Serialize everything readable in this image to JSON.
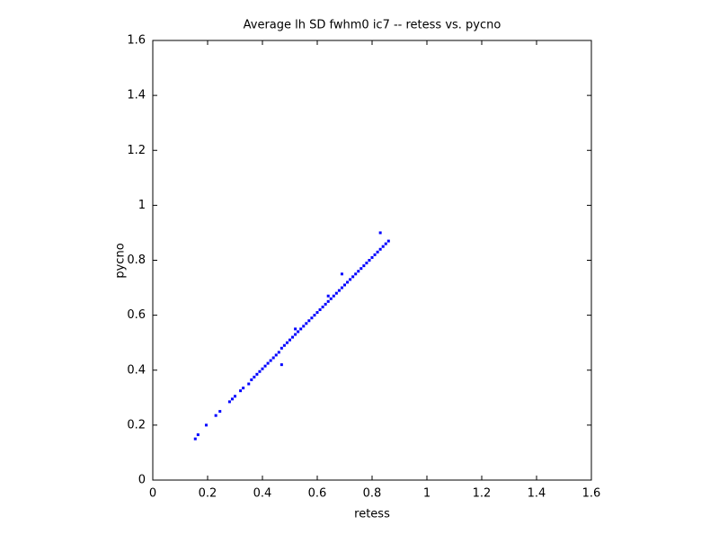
{
  "chart_data": {
    "type": "scatter",
    "title": "Average lh SD fwhm0 ic7 -- retess vs. pycno",
    "x_label": "retess",
    "y_label": "pycno",
    "x": [
      0.155,
      0.165,
      0.195,
      0.23,
      0.245,
      0.28,
      0.29,
      0.3,
      0.32,
      0.33,
      0.35,
      0.36,
      0.37,
      0.38,
      0.39,
      0.4,
      0.41,
      0.42,
      0.43,
      0.44,
      0.45,
      0.46,
      0.47,
      0.48,
      0.49,
      0.5,
      0.51,
      0.52,
      0.53,
      0.54,
      0.55,
      0.56,
      0.57,
      0.58,
      0.59,
      0.6,
      0.61,
      0.62,
      0.63,
      0.64,
      0.65,
      0.66,
      0.67,
      0.68,
      0.69,
      0.7,
      0.71,
      0.72,
      0.73,
      0.74,
      0.75,
      0.76,
      0.77,
      0.78,
      0.79,
      0.8,
      0.81,
      0.82,
      0.83,
      0.84,
      0.85,
      0.86,
      0.47,
      0.83,
      0.69,
      0.64,
      0.52
    ],
    "values": [
      0.15,
      0.165,
      0.2,
      0.235,
      0.25,
      0.285,
      0.295,
      0.305,
      0.325,
      0.335,
      0.35,
      0.365,
      0.375,
      0.385,
      0.395,
      0.405,
      0.415,
      0.425,
      0.435,
      0.445,
      0.455,
      0.465,
      0.48,
      0.49,
      0.5,
      0.51,
      0.52,
      0.53,
      0.54,
      0.55,
      0.56,
      0.57,
      0.58,
      0.59,
      0.6,
      0.61,
      0.62,
      0.63,
      0.64,
      0.65,
      0.66,
      0.67,
      0.68,
      0.69,
      0.7,
      0.71,
      0.72,
      0.73,
      0.74,
      0.75,
      0.76,
      0.77,
      0.78,
      0.79,
      0.8,
      0.81,
      0.82,
      0.83,
      0.84,
      0.85,
      0.86,
      0.87,
      0.42,
      0.9,
      0.75,
      0.67,
      0.55
    ],
    "color": "#0000ff",
    "xlim": [
      0,
      1.6
    ],
    "ylim": [
      0,
      1.6
    ],
    "xticks": [
      0,
      0.2,
      0.4,
      0.6,
      0.8,
      1,
      1.2,
      1.4,
      1.6
    ],
    "yticks": [
      0,
      0.2,
      0.4,
      0.6,
      0.8,
      1,
      1.2,
      1.4,
      1.6
    ]
  }
}
